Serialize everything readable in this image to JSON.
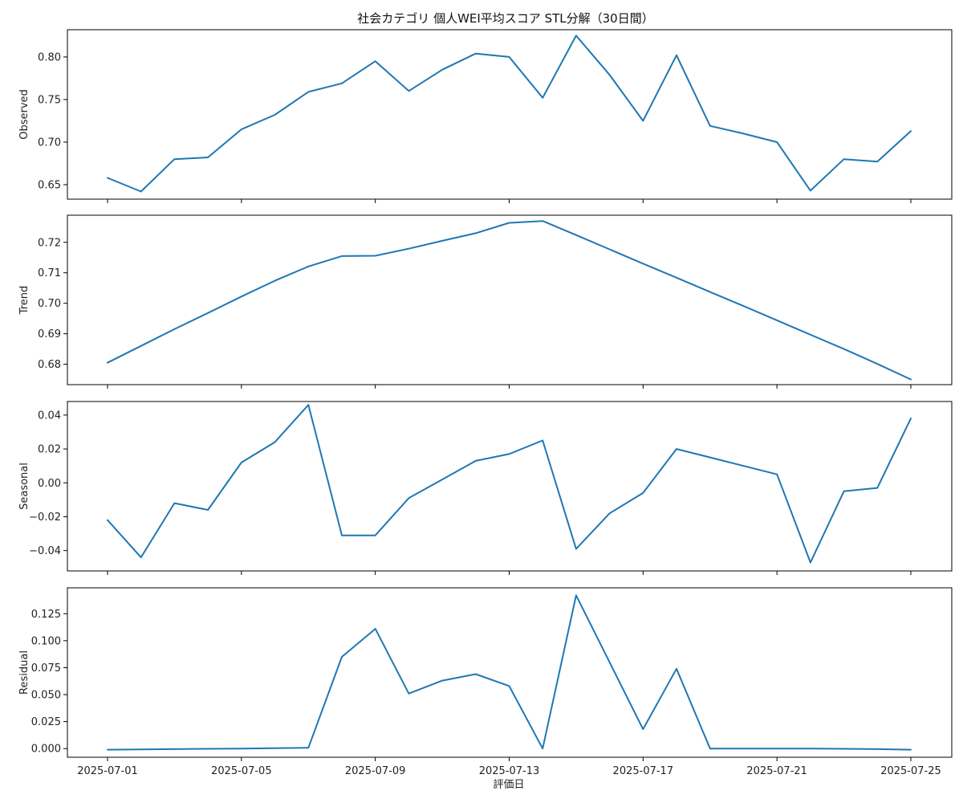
{
  "chart_data": {
    "type": "line",
    "title": "社会カテゴリ 個人WEI平均スコア STL分解（30日間）",
    "xlabel": "評価日",
    "x": [
      "2025-07-01",
      "2025-07-02",
      "2025-07-03",
      "2025-07-04",
      "2025-07-05",
      "2025-07-06",
      "2025-07-07",
      "2025-07-08",
      "2025-07-09",
      "2025-07-10",
      "2025-07-11",
      "2025-07-12",
      "2025-07-13",
      "2025-07-14",
      "2025-07-15",
      "2025-07-16",
      "2025-07-17",
      "2025-07-18",
      "2025-07-19",
      "2025-07-20",
      "2025-07-21",
      "2025-07-22",
      "2025-07-23",
      "2025-07-24",
      "2025-07-25"
    ],
    "x_ticks": [
      "2025-07-01",
      "2025-07-05",
      "2025-07-09",
      "2025-07-13",
      "2025-07-17",
      "2025-07-21",
      "2025-07-25"
    ],
    "line_color": "#1f77b4",
    "grid": false,
    "panels": [
      {
        "name": "observed",
        "ylabel": "Observed",
        "ylim": [
          0.633,
          0.832
        ],
        "yticks": [
          "0.65",
          "0.70",
          "0.75",
          "0.80"
        ],
        "values": [
          0.658,
          0.642,
          0.68,
          0.682,
          0.715,
          0.732,
          0.759,
          0.769,
          0.795,
          0.76,
          0.785,
          0.804,
          0.8,
          0.752,
          0.825,
          0.779,
          0.725,
          0.802,
          0.719,
          0.71,
          0.7,
          0.643,
          0.68,
          0.677,
          0.713
        ]
      },
      {
        "name": "trend",
        "ylabel": "Trend",
        "ylim": [
          0.6733,
          0.7289
        ],
        "yticks": [
          "0.68",
          "0.69",
          "0.70",
          "0.71",
          "0.72"
        ],
        "values": [
          0.6805,
          0.686,
          0.6915,
          0.6968,
          0.7022,
          0.7074,
          0.7121,
          0.7155,
          0.7156,
          0.7179,
          0.7205,
          0.723,
          0.7264,
          0.727,
          0.7224,
          0.7177,
          0.713,
          0.7084,
          0.7037,
          0.6991,
          0.6944,
          0.6897,
          0.685,
          0.6801,
          0.675
        ]
      },
      {
        "name": "seasonal",
        "ylabel": "Seasonal",
        "ylim": [
          -0.052,
          0.048
        ],
        "yticks": [
          "−0.04",
          "−0.02",
          "0.00",
          "0.02",
          "0.04"
        ],
        "values": [
          -0.022,
          -0.044,
          -0.012,
          -0.016,
          0.012,
          0.024,
          0.046,
          -0.031,
          -0.031,
          -0.009,
          0.002,
          0.013,
          0.017,
          0.025,
          -0.039,
          -0.018,
          -0.006,
          0.02,
          0.015,
          0.01,
          0.005,
          -0.047,
          -0.005,
          -0.003,
          0.038
        ]
      },
      {
        "name": "residual",
        "ylabel": "Residual",
        "ylim": [
          -0.008,
          0.149
        ],
        "yticks": [
          "0.000",
          "0.025",
          "0.050",
          "0.075",
          "0.100",
          "0.125"
        ],
        "values": [
          -0.001,
          -0.0008,
          -0.0005,
          -0.0002,
          0.0,
          0.0003,
          0.0008,
          0.085,
          0.111,
          0.051,
          0.063,
          0.069,
          0.058,
          0.0,
          0.142,
          0.08,
          0.018,
          0.074,
          0.0,
          0.0,
          0.0,
          0.0,
          -0.0002,
          -0.0005,
          -0.001
        ]
      }
    ]
  }
}
